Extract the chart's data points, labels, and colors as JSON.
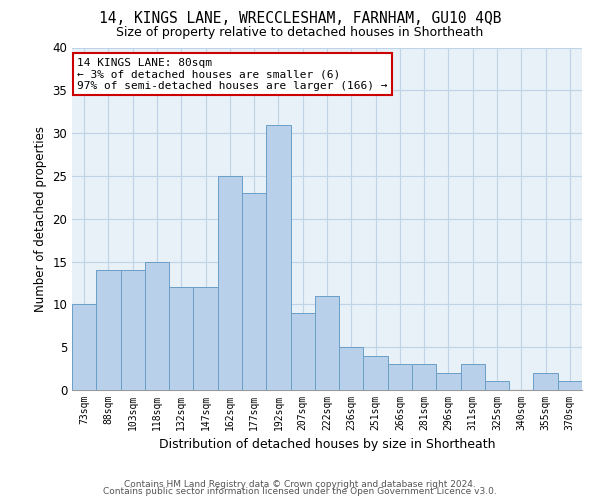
{
  "title1": "14, KINGS LANE, WRECCLESHAM, FARNHAM, GU10 4QB",
  "title2": "Size of property relative to detached houses in Shortheath",
  "xlabel": "Distribution of detached houses by size in Shortheath",
  "ylabel": "Number of detached properties",
  "categories": [
    "73sqm",
    "88sqm",
    "103sqm",
    "118sqm",
    "132sqm",
    "147sqm",
    "162sqm",
    "177sqm",
    "192sqm",
    "207sqm",
    "222sqm",
    "236sqm",
    "251sqm",
    "266sqm",
    "281sqm",
    "296sqm",
    "311sqm",
    "325sqm",
    "340sqm",
    "355sqm",
    "370sqm"
  ],
  "values": [
    10,
    14,
    14,
    15,
    12,
    12,
    25,
    23,
    31,
    9,
    11,
    5,
    4,
    3,
    3,
    2,
    3,
    1,
    0,
    2,
    1
  ],
  "bar_color": "#b8d0ea",
  "bar_edge_color": "#6a9fc8",
  "annotation_line1": "14 KINGS LANE: 80sqm",
  "annotation_line2": "← 3% of detached houses are smaller (6)",
  "annotation_line3": "97% of semi-detached houses are larger (166) →",
  "annotation_box_color": "#cc0000",
  "annotation_box_fill": "#ffffff",
  "grid_color": "#c0d4e8",
  "background_color": "#e8f0f8",
  "ylim": [
    0,
    40
  ],
  "yticks": [
    0,
    5,
    10,
    15,
    20,
    25,
    30,
    35,
    40
  ],
  "footer1": "Contains HM Land Registry data © Crown copyright and database right 2024.",
  "footer2": "Contains public sector information licensed under the Open Government Licence v3.0."
}
